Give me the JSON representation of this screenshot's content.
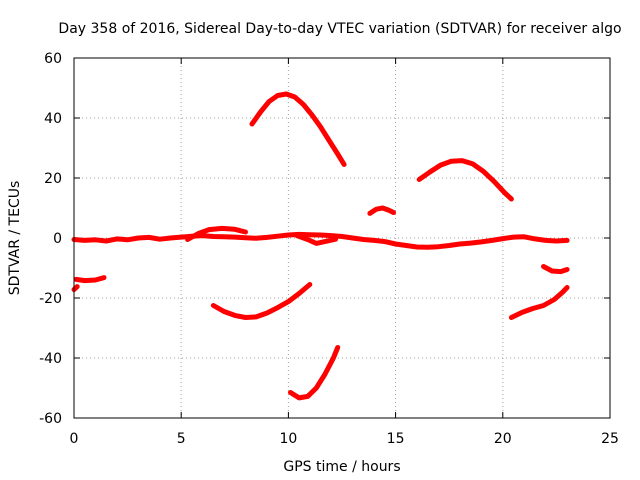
{
  "chart_data": {
    "type": "scatter",
    "title": "Day 358 of 2016, Sidereal Day-to-day VTEC variation (SDTVAR) for receiver algo",
    "xlabel": "GPS time / hours",
    "ylabel": "SDTVAR / TECUs",
    "xlim": [
      0,
      25
    ],
    "ylim": [
      -60,
      60
    ],
    "xticks": [
      0,
      5,
      10,
      15,
      20,
      25
    ],
    "yticks": [
      -60,
      -40,
      -20,
      0,
      20,
      40,
      60
    ],
    "grid": true,
    "series_color": "#ff0000",
    "segments": [
      {
        "name": "near-zero-main",
        "points": [
          [
            0,
            -0.5
          ],
          [
            0.5,
            -0.8
          ],
          [
            1,
            -0.6
          ],
          [
            1.5,
            -1
          ],
          [
            2,
            -0.3
          ],
          [
            2.5,
            -0.6
          ],
          [
            3,
            0
          ],
          [
            3.5,
            0.2
          ],
          [
            4,
            -0.4
          ],
          [
            4.5,
            0
          ],
          [
            5,
            0.3
          ],
          [
            5.5,
            0.6
          ],
          [
            6,
            0.8
          ],
          [
            6.5,
            0.5
          ],
          [
            7,
            0.4
          ],
          [
            7.5,
            0.3
          ],
          [
            8,
            0.1
          ],
          [
            8.5,
            -0.1
          ],
          [
            9,
            0.2
          ],
          [
            9.5,
            0.6
          ],
          [
            10,
            1
          ],
          [
            10.5,
            1.2
          ],
          [
            11,
            1.1
          ],
          [
            11.5,
            1
          ],
          [
            12,
            0.8
          ],
          [
            12.5,
            0.5
          ],
          [
            13,
            0
          ],
          [
            13.5,
            -0.5
          ],
          [
            14,
            -0.8
          ],
          [
            14.5,
            -1.2
          ],
          [
            15,
            -2
          ],
          [
            15.5,
            -2.5
          ],
          [
            16,
            -3
          ],
          [
            16.5,
            -3.1
          ],
          [
            17,
            -2.9
          ],
          [
            17.5,
            -2.5
          ],
          [
            18,
            -2
          ],
          [
            18.5,
            -1.7
          ],
          [
            19,
            -1.3
          ],
          [
            19.5,
            -0.8
          ],
          [
            20,
            -0.2
          ],
          [
            20.5,
            0.3
          ],
          [
            21,
            0.4
          ],
          [
            21.5,
            -0.3
          ],
          [
            22,
            -0.8
          ],
          [
            22.5,
            -1
          ],
          [
            23,
            -0.8
          ]
        ]
      },
      {
        "name": "bump-6-8h",
        "points": [
          [
            5.3,
            -0.5
          ],
          [
            5.8,
            1.5
          ],
          [
            6.3,
            2.8
          ],
          [
            6.9,
            3.2
          ],
          [
            7.5,
            2.9
          ],
          [
            8,
            2
          ]
        ]
      },
      {
        "name": "dip-10-12h",
        "points": [
          [
            10.4,
            0.8
          ],
          [
            10.9,
            -0.5
          ],
          [
            11.3,
            -1.8
          ],
          [
            11.7,
            -1.2
          ],
          [
            12.2,
            -0.4
          ]
        ]
      },
      {
        "name": "arc-peak-10h",
        "points": [
          [
            8.3,
            38
          ],
          [
            8.7,
            42
          ],
          [
            9.1,
            45.5
          ],
          [
            9.5,
            47.5
          ],
          [
            9.9,
            48
          ],
          [
            10.3,
            47
          ],
          [
            10.7,
            44.5
          ],
          [
            11.1,
            41
          ],
          [
            11.5,
            37
          ],
          [
            11.9,
            32.5
          ],
          [
            12.3,
            28
          ],
          [
            12.6,
            24.5
          ]
        ]
      },
      {
        "name": "arc-peak-18h",
        "points": [
          [
            16.1,
            19.5
          ],
          [
            16.6,
            22
          ],
          [
            17.1,
            24.3
          ],
          [
            17.6,
            25.6
          ],
          [
            18.1,
            25.8
          ],
          [
            18.6,
            24.7
          ],
          [
            19.1,
            22.2
          ],
          [
            19.6,
            18.8
          ],
          [
            20.1,
            15
          ],
          [
            20.4,
            13
          ]
        ]
      },
      {
        "name": "short-14h",
        "points": [
          [
            13.8,
            8.2
          ],
          [
            14.1,
            9.6
          ],
          [
            14.4,
            10
          ],
          [
            14.7,
            9.2
          ],
          [
            14.9,
            8.5
          ]
        ]
      },
      {
        "name": "left-minus-14",
        "points": [
          [
            0.1,
            -13.8
          ],
          [
            0.5,
            -14.2
          ],
          [
            1,
            -14
          ],
          [
            1.4,
            -13.2
          ]
        ]
      },
      {
        "name": "left-minus-17",
        "points": [
          [
            0,
            -17.2
          ],
          [
            0.15,
            -16.2
          ]
        ]
      },
      {
        "name": "trough-8h",
        "points": [
          [
            6.5,
            -22.5
          ],
          [
            7,
            -24.5
          ],
          [
            7.5,
            -25.8
          ],
          [
            8,
            -26.5
          ],
          [
            8.5,
            -26.3
          ],
          [
            9,
            -25
          ],
          [
            9.5,
            -23.2
          ],
          [
            10,
            -21.2
          ],
          [
            10.5,
            -18.5
          ],
          [
            11,
            -15.5
          ]
        ]
      },
      {
        "name": "trough-10-5h",
        "points": [
          [
            10.1,
            -51.5
          ],
          [
            10.5,
            -53.3
          ],
          [
            10.9,
            -52.8
          ],
          [
            11.3,
            -50
          ],
          [
            11.7,
            -45.5
          ],
          [
            12.1,
            -40
          ],
          [
            12.3,
            -36.5
          ]
        ]
      },
      {
        "name": "right-rise",
        "points": [
          [
            20.4,
            -26.5
          ],
          [
            20.9,
            -24.8
          ],
          [
            21.4,
            -23.5
          ],
          [
            21.9,
            -22.5
          ],
          [
            22.4,
            -20.5
          ],
          [
            22.8,
            -18
          ],
          [
            23,
            -16.5
          ]
        ]
      },
      {
        "name": "right-minus-11",
        "points": [
          [
            21.9,
            -9.5
          ],
          [
            22.3,
            -11
          ],
          [
            22.7,
            -11.2
          ],
          [
            23,
            -10.5
          ]
        ]
      }
    ]
  }
}
